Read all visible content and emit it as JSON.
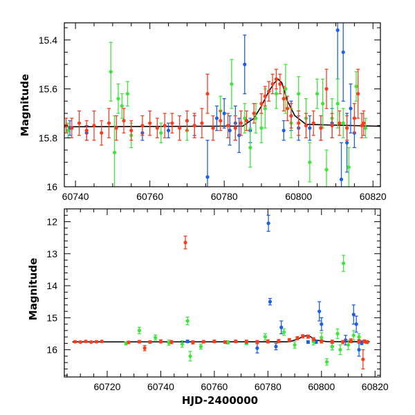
{
  "colors": {
    "red": "#ff3b1f",
    "green": "#3de63d",
    "blue": "#1f5fe6",
    "axis": "#000000",
    "model": "#000000"
  },
  "chart_data": [
    {
      "type": "scatter",
      "title": "",
      "xlabel": "",
      "ylabel": "Magnitude",
      "xlim": [
        60737,
        60822
      ],
      "ylim": [
        16.0,
        15.33
      ],
      "y_inverted": true,
      "grid": false,
      "legend": "none",
      "xticks": [
        60740,
        60760,
        60780,
        60800,
        60820
      ],
      "yticks": [
        15.4,
        15.6,
        15.8,
        16
      ],
      "ytick_labels": [
        "15.4",
        "15.6",
        "15.8",
        "16"
      ],
      "model_curve": {
        "x": [
          60737,
          60785,
          60788,
          60790,
          60792,
          60793.5,
          60794.5,
          60795.5,
          60797,
          60799,
          60802,
          60822
        ],
        "y": [
          15.755,
          15.752,
          15.72,
          15.67,
          15.61,
          15.575,
          15.56,
          15.575,
          15.65,
          15.71,
          15.745,
          15.753
        ]
      },
      "series": [
        {
          "color_key": "red",
          "points": [
            [
              60737.5,
              15.75,
              0.03
            ],
            [
              60739,
              15.76,
              0.04
            ],
            [
              60741,
              15.74,
              0.05
            ],
            [
              60743,
              15.77,
              0.04
            ],
            [
              60745,
              15.75,
              0.06
            ],
            [
              60747,
              15.78,
              0.05
            ],
            [
              60749,
              15.74,
              0.06
            ],
            [
              60751,
              15.76,
              0.05
            ],
            [
              60753,
              15.73,
              0.05
            ],
            [
              60755,
              15.77,
              0.04
            ],
            [
              60758,
              15.75,
              0.04
            ],
            [
              60760,
              15.74,
              0.05
            ],
            [
              60762,
              15.76,
              0.04
            ],
            [
              60764,
              15.75,
              0.05
            ],
            [
              60766,
              15.74,
              0.04
            ],
            [
              60768,
              15.76,
              0.05
            ],
            [
              60770,
              15.73,
              0.04
            ],
            [
              60772,
              15.75,
              0.05
            ],
            [
              60774,
              15.74,
              0.06
            ],
            [
              60775.5,
              15.62,
              0.08
            ],
            [
              60777,
              15.76,
              0.05
            ],
            [
              60779,
              15.73,
              0.04
            ],
            [
              60781,
              15.75,
              0.05
            ],
            [
              60783,
              15.76,
              0.05
            ],
            [
              60784.5,
              15.74,
              0.05
            ],
            [
              60786,
              15.73,
              0.04
            ],
            [
              60788,
              15.7,
              0.04
            ],
            [
              60790,
              15.66,
              0.04
            ],
            [
              60791,
              15.63,
              0.04
            ],
            [
              60792,
              15.61,
              0.04
            ],
            [
              60793,
              15.58,
              0.04
            ],
            [
              60794,
              15.56,
              0.04
            ],
            [
              60795,
              15.58,
              0.04
            ],
            [
              60796,
              15.64,
              0.05
            ],
            [
              60797,
              15.68,
              0.05
            ],
            [
              60798,
              15.71,
              0.05
            ],
            [
              60800,
              15.74,
              0.05
            ],
            [
              60802,
              15.75,
              0.05
            ],
            [
              60804,
              15.74,
              0.05
            ],
            [
              60806,
              15.76,
              0.05
            ],
            [
              60807.5,
              15.6,
              0.08
            ],
            [
              60809,
              15.75,
              0.05
            ],
            [
              60811,
              15.74,
              0.05
            ],
            [
              60813,
              15.76,
              0.05
            ],
            [
              60815,
              15.72,
              0.06
            ],
            [
              60816,
              15.62,
              0.1
            ],
            [
              60817,
              15.75,
              0.05
            ],
            [
              60817.5,
              15.74,
              0.05
            ]
          ]
        },
        {
          "color_key": "green",
          "points": [
            [
              60738,
              15.77,
              0.03
            ],
            [
              60749.5,
              15.53,
              0.12
            ],
            [
              60750.5,
              15.86,
              0.15
            ],
            [
              60751.5,
              15.64,
              0.06
            ],
            [
              60752.5,
              15.67,
              0.05
            ],
            [
              60754,
              15.62,
              0.05
            ],
            [
              60755,
              15.79,
              0.05
            ],
            [
              60763,
              15.78,
              0.04
            ],
            [
              60770,
              15.77,
              0.04
            ],
            [
              60779,
              15.69,
              0.06
            ],
            [
              60782,
              15.58,
              0.1
            ],
            [
              60785.5,
              15.72,
              0.06
            ],
            [
              60787,
              15.84,
              0.08
            ],
            [
              60788.5,
              15.72,
              0.06
            ],
            [
              60790,
              15.76,
              0.06
            ],
            [
              60791,
              15.68,
              0.08
            ],
            [
              60794,
              15.62,
              0.06
            ],
            [
              60796.5,
              15.6,
              0.1
            ],
            [
              60798,
              15.74,
              0.06
            ],
            [
              60800,
              15.62,
              0.07
            ],
            [
              60802,
              15.72,
              0.08
            ],
            [
              60803,
              15.9,
              0.08
            ],
            [
              60805,
              15.62,
              0.06
            ],
            [
              60806.5,
              15.66,
              0.1
            ],
            [
              60807.5,
              15.93,
              0.08
            ],
            [
              60809,
              15.72,
              0.08
            ],
            [
              60810.5,
              15.66,
              0.1
            ],
            [
              60812,
              15.74,
              0.06
            ],
            [
              60813.5,
              15.92,
              0.08
            ],
            [
              60815.5,
              15.59,
              0.06
            ],
            [
              60818,
              15.76,
              0.04
            ]
          ]
        },
        {
          "color_key": "blue",
          "points": [
            [
              60738.5,
              15.76,
              0.03
            ],
            [
              60743,
              15.78,
              0.03
            ],
            [
              60758,
              15.78,
              0.03
            ],
            [
              60765,
              15.77,
              0.03
            ],
            [
              60772,
              15.75,
              0.04
            ],
            [
              60775.5,
              15.96,
              0.15
            ],
            [
              60778,
              15.72,
              0.05
            ],
            [
              60780,
              15.7,
              0.06
            ],
            [
              60781.5,
              15.77,
              0.06
            ],
            [
              60783,
              15.74,
              0.07
            ],
            [
              60784,
              15.79,
              0.07
            ],
            [
              60785.5,
              15.5,
              0.12
            ],
            [
              60787,
              15.77,
              0.05
            ],
            [
              60796,
              15.77,
              0.04
            ],
            [
              60798,
              15.71,
              0.06
            ],
            [
              60800,
              15.76,
              0.05
            ],
            [
              60803,
              15.76,
              0.05
            ],
            [
              60806,
              15.76,
              0.05
            ],
            [
              60809,
              15.74,
              0.06
            ],
            [
              60810.5,
              15.36,
              0.2
            ],
            [
              60811.5,
              15.97,
              0.15
            ],
            [
              60812,
              15.45,
              0.2
            ],
            [
              60813,
              15.82,
              0.12
            ],
            [
              60814,
              15.68,
              0.1
            ],
            [
              60815,
              15.78,
              0.06
            ]
          ]
        }
      ]
    },
    {
      "type": "scatter",
      "title": "",
      "xlabel": "HJD-2400000",
      "ylabel": "Magnitude",
      "xlim": [
        60704,
        60822
      ],
      "ylim": [
        16.85,
        11.6
      ],
      "y_inverted": true,
      "grid": false,
      "legend": "none",
      "xticks": [
        60720,
        60740,
        60760,
        60780,
        60800,
        60820
      ],
      "yticks": [
        12,
        13,
        14,
        15,
        16
      ],
      "ytick_labels": [
        "12",
        "13",
        "14",
        "15",
        "16"
      ],
      "model_curve": {
        "x": [
          60707,
          60788,
          60791,
          60793.5,
          60794.5,
          60795.5,
          60798,
          60802,
          60818
        ],
        "y": [
          15.755,
          15.752,
          15.67,
          15.575,
          15.56,
          15.575,
          15.7,
          15.745,
          15.753
        ]
      },
      "series": [
        {
          "color_key": "red",
          "points": [
            [
              60708,
              15.75,
              0.03
            ],
            [
              60710,
              15.76,
              0.03
            ],
            [
              60712,
              15.74,
              0.03
            ],
            [
              60714,
              15.76,
              0.03
            ],
            [
              60716,
              15.75,
              0.03
            ],
            [
              60718,
              15.74,
              0.03
            ],
            [
              60728,
              15.77,
              0.04
            ],
            [
              60732,
              15.75,
              0.04
            ],
            [
              60734,
              15.95,
              0.08
            ],
            [
              60736,
              15.76,
              0.04
            ],
            [
              60740,
              15.74,
              0.05
            ],
            [
              60744,
              15.76,
              0.05
            ],
            [
              60749.2,
              12.65,
              0.2
            ],
            [
              60752,
              15.77,
              0.05
            ],
            [
              60756,
              15.75,
              0.04
            ],
            [
              60760,
              15.74,
              0.04
            ],
            [
              60764,
              15.76,
              0.04
            ],
            [
              60768,
              15.74,
              0.04
            ],
            [
              60772,
              15.75,
              0.05
            ],
            [
              60776,
              15.76,
              0.05
            ],
            [
              60780,
              15.74,
              0.05
            ],
            [
              60784,
              15.73,
              0.05
            ],
            [
              60788,
              15.7,
              0.05
            ],
            [
              60791,
              15.64,
              0.05
            ],
            [
              60793,
              15.58,
              0.05
            ],
            [
              60795,
              15.59,
              0.05
            ],
            [
              60797,
              15.67,
              0.05
            ],
            [
              60800,
              15.74,
              0.05
            ],
            [
              60804,
              15.75,
              0.05
            ],
            [
              60808,
              15.76,
              0.05
            ],
            [
              60811,
              15.72,
              0.06
            ],
            [
              60814,
              15.74,
              0.06
            ],
            [
              60815.5,
              16.3,
              0.3
            ],
            [
              60816,
              15.74,
              0.05
            ],
            [
              60817,
              15.76,
              0.04
            ]
          ]
        },
        {
          "color_key": "green",
          "points": [
            [
              60727,
              15.8,
              0.05
            ],
            [
              60732,
              15.4,
              0.1
            ],
            [
              60738,
              15.62,
              0.08
            ],
            [
              60743,
              15.78,
              0.08
            ],
            [
              60748,
              15.82,
              0.1
            ],
            [
              60750,
              15.1,
              0.12
            ],
            [
              60751,
              16.2,
              0.15
            ],
            [
              60755,
              15.9,
              0.08
            ],
            [
              60765,
              15.77,
              0.05
            ],
            [
              60772,
              15.79,
              0.05
            ],
            [
              60779,
              15.6,
              0.1
            ],
            [
              60786,
              15.45,
              0.1
            ],
            [
              60790,
              15.85,
              0.1
            ],
            [
              60797,
              15.75,
              0.1
            ],
            [
              60800,
              15.62,
              0.15
            ],
            [
              60802,
              16.38,
              0.1
            ],
            [
              60804,
              15.9,
              0.1
            ],
            [
              60806,
              15.5,
              0.15
            ],
            [
              60807,
              16.0,
              0.15
            ],
            [
              60808.2,
              13.3,
              0.25
            ],
            [
              60810,
              15.85,
              0.15
            ],
            [
              60812,
              15.55,
              0.15
            ],
            [
              60814,
              15.6,
              0.1
            ],
            [
              60817,
              15.76,
              0.05
            ]
          ]
        },
        {
          "color_key": "blue",
          "points": [
            [
              60750,
              15.74,
              0.04
            ],
            [
              60765,
              15.78,
              0.03
            ],
            [
              60776,
              15.95,
              0.15
            ],
            [
              60780.2,
              12.05,
              0.25
            ],
            [
              60780.8,
              14.5,
              0.1
            ],
            [
              60783,
              15.9,
              0.1
            ],
            [
              60785,
              15.3,
              0.2
            ],
            [
              60795,
              15.76,
              0.04
            ],
            [
              60798,
              15.75,
              0.05
            ],
            [
              60799.2,
              14.8,
              0.3
            ],
            [
              60800,
              15.2,
              0.2
            ],
            [
              60804,
              15.9,
              0.1
            ],
            [
              60809,
              15.7,
              0.15
            ],
            [
              60812,
              14.9,
              0.3
            ],
            [
              60813,
              15.2,
              0.25
            ],
            [
              60814,
              16.0,
              0.2
            ],
            [
              60815,
              15.78,
              0.06
            ]
          ]
        }
      ]
    }
  ]
}
